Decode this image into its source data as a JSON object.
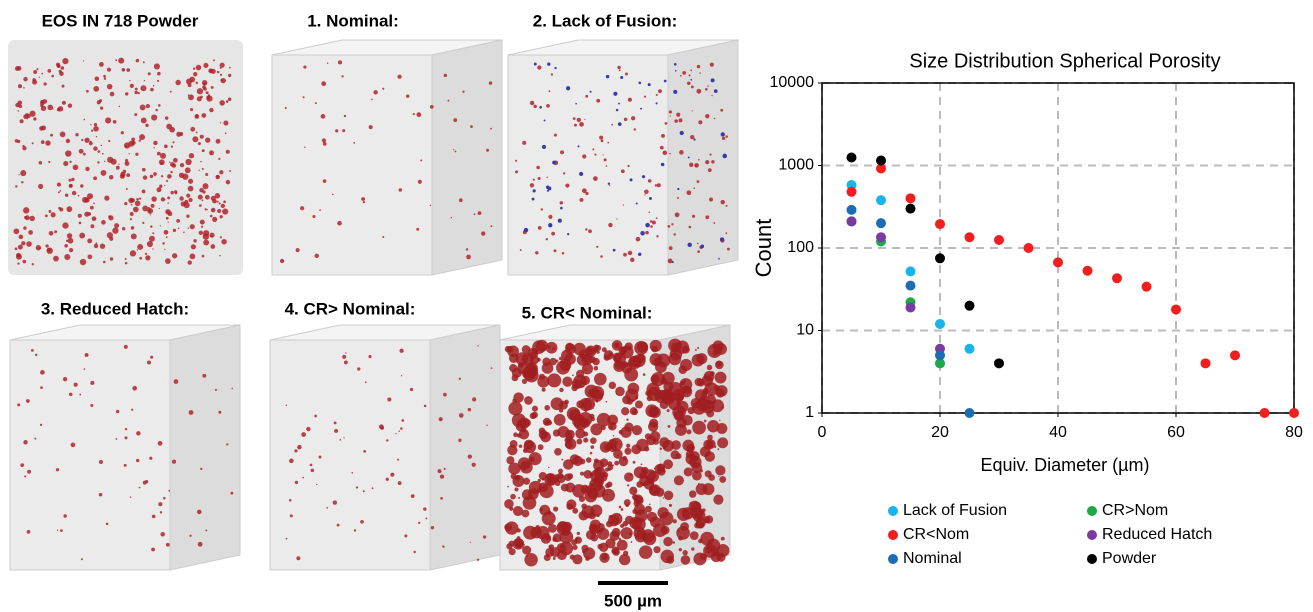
{
  "panels": [
    {
      "title": "EOS IN 718 Powder"
    },
    {
      "title": "1. Nominal:"
    },
    {
      "title": "2. Lack of Fusion:"
    },
    {
      "title": "3. Reduced Hatch:"
    },
    {
      "title": "4. CR> Nominal:"
    },
    {
      "title": "5. CR< Nominal:"
    }
  ],
  "scale_bar": "500 µm",
  "chart_data": {
    "type": "scatter",
    "title": "Size Distribution Spherical Porosity",
    "x_label": "Equiv. Diameter (µm)",
    "y_label": "Count",
    "xlim": [
      0,
      80
    ],
    "xticks": [
      0,
      20,
      40,
      60,
      80
    ],
    "ylim": [
      1,
      10000
    ],
    "yticks": [
      1,
      10,
      100,
      1000,
      10000
    ],
    "log_y": true,
    "grid": true,
    "legend": "bottom",
    "series": [
      {
        "name": "Lack of Fusion",
        "color": "#1ab4ec",
        "x": [
          5,
          10,
          15,
          20,
          25
        ],
        "values": [
          580,
          380,
          52,
          12,
          6
        ]
      },
      {
        "name": "CR>Nom",
        "color": "#1fa84a",
        "x": [
          5,
          10,
          15,
          20
        ],
        "values": [
          210,
          120,
          22,
          4
        ]
      },
      {
        "name": "CR<Nom",
        "color": "#f21d1d",
        "x": [
          5,
          10,
          15,
          20,
          25,
          30,
          35,
          40,
          45,
          50,
          55,
          60,
          65,
          70,
          75,
          80
        ],
        "values": [
          480,
          920,
          400,
          195,
          135,
          125,
          100,
          67,
          53,
          43,
          34,
          18,
          4,
          5,
          1,
          1
        ]
      },
      {
        "name": "Reduced Hatch",
        "color": "#7a3b9e",
        "x": [
          5,
          10,
          15,
          20
        ],
        "values": [
          210,
          135,
          19,
          6
        ]
      },
      {
        "name": "Nominal",
        "color": "#1c6db3",
        "x": [
          5,
          10,
          15,
          20,
          25
        ],
        "values": [
          290,
          200,
          35,
          5,
          1
        ]
      },
      {
        "name": "Powder",
        "color": "#000000",
        "x": [
          5,
          10,
          15,
          20,
          25,
          30
        ],
        "values": [
          1250,
          1150,
          300,
          75,
          20,
          4
        ]
      }
    ]
  }
}
